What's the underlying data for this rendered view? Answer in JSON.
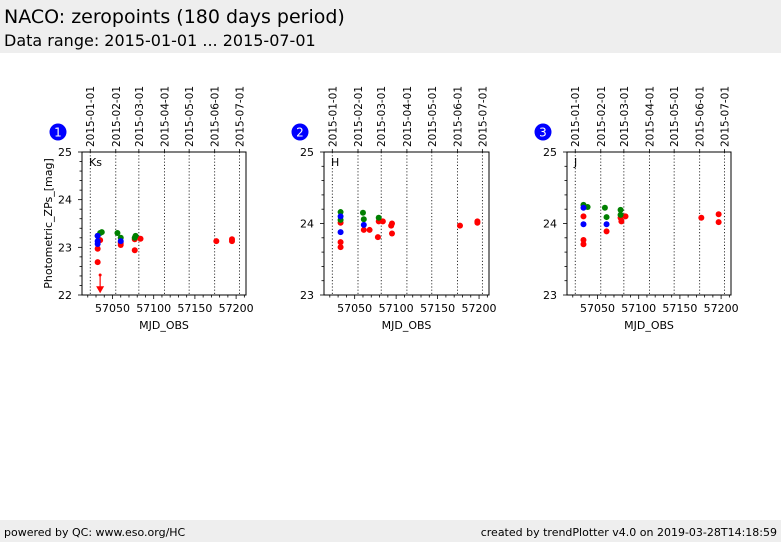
{
  "header": {
    "title": "NACO: zeropoints (180 days period)",
    "subtitle": "Data range: 2015-01-01 ... 2015-07-01"
  },
  "footer": {
    "left": "powered by QC: www.eso.org/HC",
    "right": "created by trendPlotter v4.0 on 2019-03-28T14:18:59"
  },
  "colors": {
    "red": "#ff0000",
    "green": "#008000",
    "blue": "#0000ff",
    "badge": "#0000ff",
    "header_bg": "#eeeeee"
  },
  "chart_data": [
    {
      "type": "scatter",
      "panel_number": "1",
      "label": "Ks",
      "xlabel": "MJD_OBS",
      "ylabel": "Photometric_ZPs_[mag]",
      "xlim": [
        57013,
        57212
      ],
      "ylim": [
        22,
        25
      ],
      "xticks": [
        57050,
        57100,
        57150,
        57200
      ],
      "yticks": [
        22,
        23,
        24,
        25
      ],
      "date_ticks": [
        {
          "label": "2015-01-01",
          "mjd": 57023
        },
        {
          "label": "2015-02-01",
          "mjd": 57054
        },
        {
          "label": "2015-03-01",
          "mjd": 57082
        },
        {
          "label": "2015-04-01",
          "mjd": 57113
        },
        {
          "label": "2015-05-01",
          "mjd": 57143
        },
        {
          "label": "2015-06-01",
          "mjd": 57174
        },
        {
          "label": "2015-07-01",
          "mjd": 57204
        }
      ],
      "series": [
        {
          "name": "red",
          "color": "#ff0000",
          "points": [
            [
              57032,
              22.97
            ],
            [
              57032,
              22.69
            ],
            [
              57035,
              23.15
            ],
            [
              57060,
              23.09
            ],
            [
              57060,
              23.05
            ],
            [
              57077,
              23.17
            ],
            [
              57077,
              22.94
            ],
            [
              57084,
              23.18
            ],
            [
              57176,
              23.13
            ],
            [
              57195,
              23.17
            ],
            [
              57195,
              23.13
            ]
          ]
        },
        {
          "name": "green",
          "color": "#008000",
          "points": [
            [
              57032,
              23.24
            ],
            [
              57035,
              23.3
            ],
            [
              57037,
              23.32
            ],
            [
              57056,
              23.3
            ],
            [
              57060,
              23.2
            ],
            [
              57078,
              23.24
            ],
            [
              57077,
              23.2
            ]
          ]
        },
        {
          "name": "blue",
          "color": "#0000ff",
          "points": [
            [
              57032,
              23.24
            ],
            [
              57032,
              23.13
            ],
            [
              57032,
              23.07
            ],
            [
              57060,
              23.13
            ]
          ]
        }
      ],
      "upper_limits": [
        {
          "x": 57035,
          "from": 22.42,
          "to": 22.1,
          "color": "#ff0000"
        }
      ]
    },
    {
      "type": "scatter",
      "panel_number": "2",
      "label": "H",
      "xlabel": "MJD_OBS",
      "ylabel": "",
      "xlim": [
        57013,
        57212
      ],
      "ylim": [
        23,
        25
      ],
      "xticks": [
        57050,
        57100,
        57150,
        57200
      ],
      "yticks": [
        23,
        24,
        25
      ],
      "date_ticks": [
        {
          "label": "2015-01-01",
          "mjd": 57023
        },
        {
          "label": "2015-02-01",
          "mjd": 57054
        },
        {
          "label": "2015-03-01",
          "mjd": 57082
        },
        {
          "label": "2015-04-01",
          "mjd": 57113
        },
        {
          "label": "2015-05-01",
          "mjd": 57143
        },
        {
          "label": "2015-06-01",
          "mjd": 57174
        },
        {
          "label": "2015-07-01",
          "mjd": 57204
        }
      ],
      "series": [
        {
          "name": "red",
          "color": "#ff0000",
          "points": [
            [
              57033,
              24.01
            ],
            [
              57033,
              23.74
            ],
            [
              57033,
              23.67
            ],
            [
              57061,
              23.91
            ],
            [
              57068,
              23.91
            ],
            [
              57078,
              23.81
            ],
            [
              57079,
              24.03
            ],
            [
              57084,
              24.03
            ],
            [
              57094,
              23.97
            ],
            [
              57095,
              24.0
            ],
            [
              57095,
              23.86
            ],
            [
              57177,
              23.97
            ],
            [
              57198,
              24.03
            ],
            [
              57198,
              24.01
            ]
          ]
        },
        {
          "name": "green",
          "color": "#008000",
          "points": [
            [
              57033,
              24.16
            ],
            [
              57033,
              24.05
            ],
            [
              57060,
              24.15
            ],
            [
              57061,
              24.06
            ],
            [
              57079,
              24.08
            ]
          ]
        },
        {
          "name": "blue",
          "color": "#0000ff",
          "points": [
            [
              57033,
              24.1
            ],
            [
              57033,
              23.88
            ],
            [
              57061,
              23.98
            ]
          ]
        }
      ],
      "upper_limits": []
    },
    {
      "type": "scatter",
      "panel_number": "3",
      "label": "J",
      "xlabel": "MJD_OBS",
      "ylabel": "",
      "xlim": [
        57013,
        57212
      ],
      "ylim": [
        23,
        25
      ],
      "xticks": [
        57050,
        57100,
        57150,
        57200
      ],
      "yticks": [
        23,
        24,
        25
      ],
      "date_ticks": [
        {
          "label": "2015-01-01",
          "mjd": 57023
        },
        {
          "label": "2015-02-01",
          "mjd": 57054
        },
        {
          "label": "2015-03-01",
          "mjd": 57082
        },
        {
          "label": "2015-04-01",
          "mjd": 57113
        },
        {
          "label": "2015-05-01",
          "mjd": 57143
        },
        {
          "label": "2015-06-01",
          "mjd": 57174
        },
        {
          "label": "2015-07-01",
          "mjd": 57204
        }
      ],
      "series": [
        {
          "name": "red",
          "color": "#ff0000",
          "points": [
            [
              57033,
              24.1
            ],
            [
              57033,
              23.77
            ],
            [
              57033,
              23.71
            ],
            [
              57061,
              23.89
            ],
            [
              57078,
              24.08
            ],
            [
              57079,
              24.03
            ],
            [
              57084,
              24.1
            ],
            [
              57176,
              24.08
            ],
            [
              57197,
              24.13
            ],
            [
              57197,
              24.02
            ]
          ]
        },
        {
          "name": "green",
          "color": "#008000",
          "points": [
            [
              57033,
              24.26
            ],
            [
              57038,
              24.23
            ],
            [
              57059,
              24.22
            ],
            [
              57061,
              24.09
            ],
            [
              57078,
              24.19
            ],
            [
              57078,
              24.12
            ]
          ]
        },
        {
          "name": "blue",
          "color": "#0000ff",
          "points": [
            [
              57033,
              24.22
            ],
            [
              57033,
              23.99
            ],
            [
              57061,
              23.99
            ]
          ]
        }
      ],
      "upper_limits": []
    }
  ]
}
